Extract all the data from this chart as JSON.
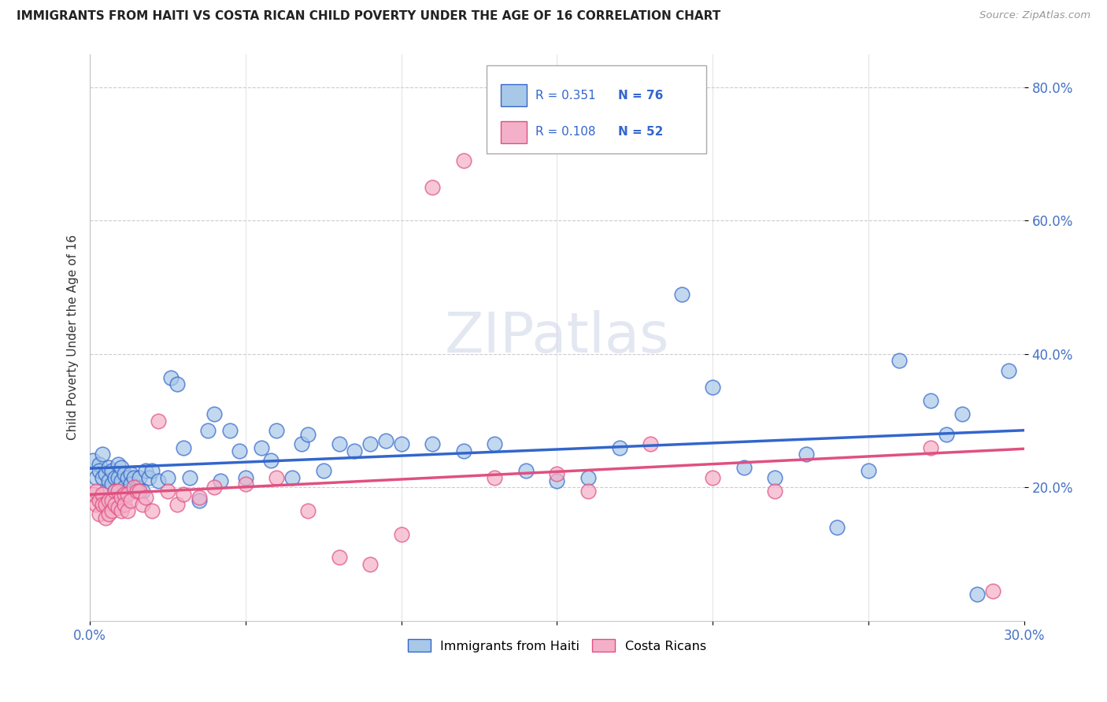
{
  "title": "IMMIGRANTS FROM HAITI VS COSTA RICAN CHILD POVERTY UNDER THE AGE OF 16 CORRELATION CHART",
  "source": "Source: ZipAtlas.com",
  "ylabel": "Child Poverty Under the Age of 16",
  "xlim": [
    0.0,
    0.3
  ],
  "ylim": [
    0.0,
    0.85
  ],
  "ytick_positions": [
    0.2,
    0.4,
    0.6,
    0.8
  ],
  "series1_color": "#a8c8e8",
  "series2_color": "#f4b0c8",
  "line1_color": "#3366cc",
  "line2_color": "#e05080",
  "R1": 0.351,
  "N1": 76,
  "R2": 0.108,
  "N2": 52,
  "background_color": "#ffffff",
  "grid_color": "#cccccc",
  "haiti_x": [
    0.001,
    0.002,
    0.003,
    0.003,
    0.004,
    0.004,
    0.005,
    0.005,
    0.006,
    0.006,
    0.007,
    0.007,
    0.008,
    0.008,
    0.009,
    0.009,
    0.01,
    0.01,
    0.011,
    0.011,
    0.012,
    0.012,
    0.013,
    0.013,
    0.014,
    0.015,
    0.016,
    0.017,
    0.018,
    0.019,
    0.02,
    0.022,
    0.025,
    0.026,
    0.028,
    0.03,
    0.032,
    0.035,
    0.038,
    0.04,
    0.042,
    0.045,
    0.048,
    0.05,
    0.055,
    0.058,
    0.06,
    0.065,
    0.068,
    0.07,
    0.075,
    0.08,
    0.085,
    0.09,
    0.095,
    0.1,
    0.11,
    0.12,
    0.13,
    0.14,
    0.15,
    0.16,
    0.17,
    0.19,
    0.2,
    0.21,
    0.22,
    0.23,
    0.24,
    0.25,
    0.26,
    0.27,
    0.275,
    0.28,
    0.285,
    0.295
  ],
  "haiti_y": [
    0.24,
    0.215,
    0.235,
    0.225,
    0.25,
    0.215,
    0.22,
    0.195,
    0.23,
    0.21,
    0.225,
    0.205,
    0.215,
    0.195,
    0.235,
    0.215,
    0.23,
    0.21,
    0.22,
    0.2,
    0.215,
    0.195,
    0.22,
    0.205,
    0.215,
    0.2,
    0.215,
    0.195,
    0.225,
    0.215,
    0.225,
    0.21,
    0.215,
    0.365,
    0.355,
    0.26,
    0.215,
    0.18,
    0.285,
    0.31,
    0.21,
    0.285,
    0.255,
    0.215,
    0.26,
    0.24,
    0.285,
    0.215,
    0.265,
    0.28,
    0.225,
    0.265,
    0.255,
    0.265,
    0.27,
    0.265,
    0.265,
    0.255,
    0.265,
    0.225,
    0.21,
    0.215,
    0.26,
    0.49,
    0.35,
    0.23,
    0.215,
    0.25,
    0.14,
    0.225,
    0.39,
    0.33,
    0.28,
    0.31,
    0.04,
    0.375
  ],
  "costarica_x": [
    0.001,
    0.002,
    0.002,
    0.003,
    0.003,
    0.004,
    0.004,
    0.005,
    0.005,
    0.006,
    0.006,
    0.007,
    0.007,
    0.008,
    0.008,
    0.009,
    0.009,
    0.01,
    0.01,
    0.011,
    0.011,
    0.012,
    0.012,
    0.013,
    0.014,
    0.015,
    0.016,
    0.017,
    0.018,
    0.02,
    0.022,
    0.025,
    0.028,
    0.03,
    0.035,
    0.04,
    0.05,
    0.06,
    0.07,
    0.08,
    0.09,
    0.1,
    0.11,
    0.12,
    0.13,
    0.15,
    0.16,
    0.18,
    0.2,
    0.22,
    0.27,
    0.29
  ],
  "costarica_y": [
    0.19,
    0.195,
    0.175,
    0.18,
    0.16,
    0.19,
    0.175,
    0.175,
    0.155,
    0.18,
    0.16,
    0.18,
    0.165,
    0.195,
    0.175,
    0.195,
    0.17,
    0.185,
    0.165,
    0.19,
    0.175,
    0.19,
    0.165,
    0.18,
    0.2,
    0.195,
    0.195,
    0.175,
    0.185,
    0.165,
    0.3,
    0.195,
    0.175,
    0.19,
    0.185,
    0.2,
    0.205,
    0.215,
    0.165,
    0.095,
    0.085,
    0.13,
    0.65,
    0.69,
    0.215,
    0.22,
    0.195,
    0.265,
    0.215,
    0.195,
    0.26,
    0.045
  ]
}
